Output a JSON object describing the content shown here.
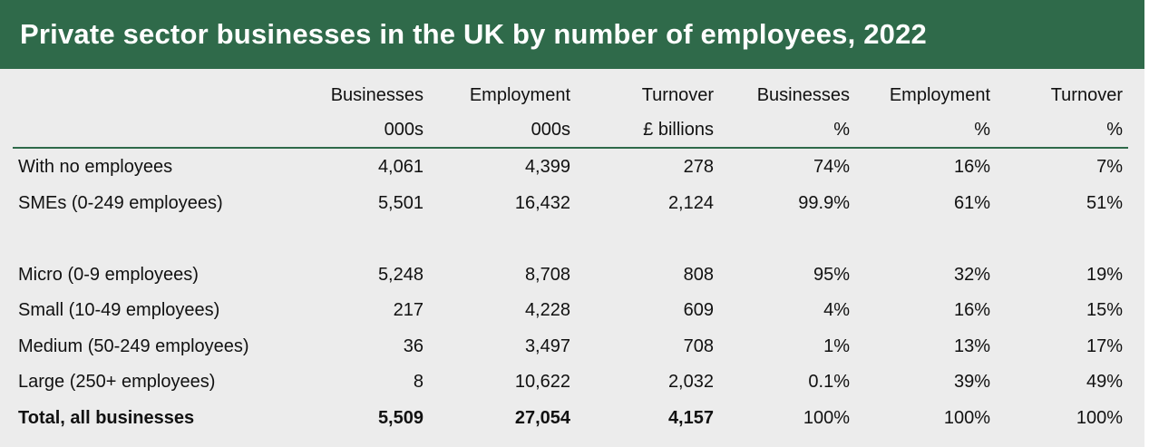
{
  "title": "Private sector businesses in the UK by number of employees, 2022",
  "colors": {
    "header_bg": "#2f6a4a",
    "body_bg": "#ececec",
    "title_text": "#ffffff"
  },
  "chart_data": {
    "type": "table",
    "title": "Private sector businesses in the UK by number of employees, 2022",
    "columns": [
      {
        "name": "Businesses",
        "unit": "000s"
      },
      {
        "name": "Employment",
        "unit": "000s"
      },
      {
        "name": "Turnover",
        "unit": "£ billions"
      },
      {
        "name": "Businesses",
        "unit": "%"
      },
      {
        "name": "Employment",
        "unit": "%"
      },
      {
        "name": "Turnover",
        "unit": "%"
      }
    ],
    "rows": [
      {
        "label": "With no employees",
        "values": [
          "4,061",
          "4,399",
          "278",
          "74%",
          "16%",
          "7%"
        ]
      },
      {
        "label": "SMEs (0-249 employees)",
        "values": [
          "5,501",
          "16,432",
          "2,124",
          "99.9%",
          "61%",
          "51%"
        ]
      },
      {
        "label": "Micro (0-9 employees)",
        "values": [
          "5,248",
          "8,708",
          "808",
          "95%",
          "32%",
          "19%"
        ]
      },
      {
        "label": "Small (10-49 employees)",
        "values": [
          "217",
          "4,228",
          "609",
          "4%",
          "16%",
          "15%"
        ]
      },
      {
        "label": "Medium (50-249 employees)",
        "values": [
          "36",
          "3,497",
          "708",
          "1%",
          "13%",
          "17%"
        ]
      },
      {
        "label": "Large (250+ employees)",
        "values": [
          "8",
          "10,622",
          "2,032",
          "0.1%",
          "39%",
          "49%"
        ]
      }
    ],
    "total": {
      "label": "Total, all businesses",
      "values": [
        "5,509",
        "27,054",
        "4,157",
        "100%",
        "100%",
        "100%"
      ]
    }
  }
}
